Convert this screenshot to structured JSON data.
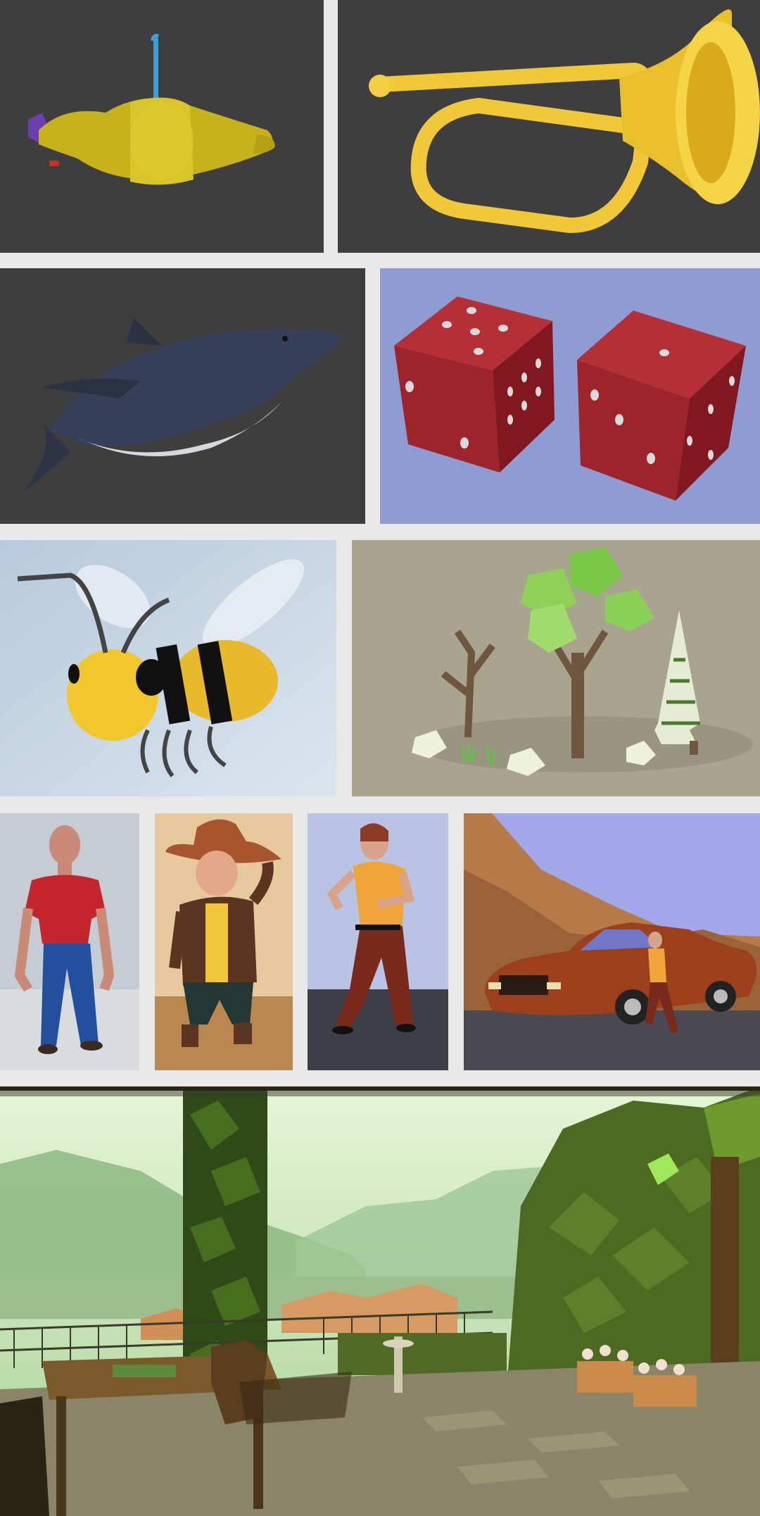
{
  "gallery": {
    "background": "#e9e9ea",
    "tiles": [
      {
        "subject": "yellow-submarine",
        "background": "#3e3e3e"
      },
      {
        "subject": "yellow-bugle",
        "background": "#3e3e3e"
      },
      {
        "subject": "shark",
        "background": "#3e3e3e"
      },
      {
        "subject": "red-dice",
        "background": "#8f9bd3"
      },
      {
        "subject": "cartoon-bee",
        "background": "#c9d6e3"
      },
      {
        "subject": "low-poly-trees",
        "background": "#a9a48e"
      },
      {
        "subject": "man-red-shirt",
        "background": "#c5ccd3"
      },
      {
        "subject": "cowboy-character",
        "background": "#e6c99d"
      },
      {
        "subject": "dancing-man",
        "background": "#b9c3e3"
      },
      {
        "subject": "car-and-man-desert",
        "background": "#a2a8ea"
      },
      {
        "subject": "lakeside-terrace-scene",
        "background": "#bfe0b0"
      }
    ]
  }
}
